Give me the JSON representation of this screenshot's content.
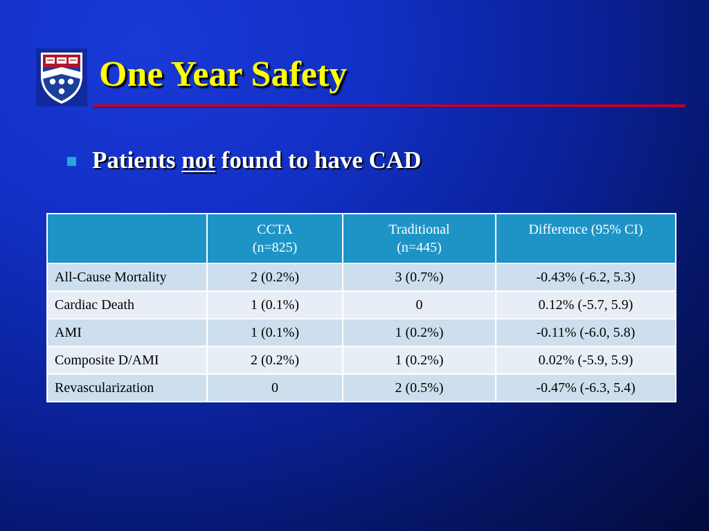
{
  "slide": {
    "title": "One Year Safety",
    "bullet": {
      "prefix": "Patients ",
      "emphasis": "not",
      "suffix": " found to have CAD"
    }
  },
  "colors": {
    "title": "#ffff00",
    "rule": "#c0002a",
    "bullet_marker": "#25a6dd",
    "table_header": "#1e94c6",
    "row_odd": "#cddfee",
    "row_even": "#e7eef6"
  },
  "logo": {
    "icon": "university-shield-icon"
  },
  "table": {
    "headers": [
      {
        "line1": "",
        "line2": ""
      },
      {
        "line1": "CCTA",
        "line2": "(n=825)"
      },
      {
        "line1": "Traditional",
        "line2": "(n=445)"
      },
      {
        "line1": "Difference (95% CI)",
        "line2": ""
      }
    ],
    "rows": [
      [
        "All-Cause Mortality",
        "2 (0.2%)",
        "3 (0.7%)",
        "-0.43% (-6.2, 5.3)"
      ],
      [
        "Cardiac Death",
        "1 (0.1%)",
        "0",
        "0.12% (-5.7, 5.9)"
      ],
      [
        "AMI",
        "1 (0.1%)",
        "1 (0.2%)",
        "-0.11% (-6.0, 5.8)"
      ],
      [
        "Composite D/AMI",
        "2 (0.2%)",
        "1 (0.2%)",
        "0.02% (-5.9, 5.9)"
      ],
      [
        "Revascularization",
        "0",
        "2 (0.5%)",
        "-0.47% (-6.3, 5.4)"
      ]
    ]
  }
}
